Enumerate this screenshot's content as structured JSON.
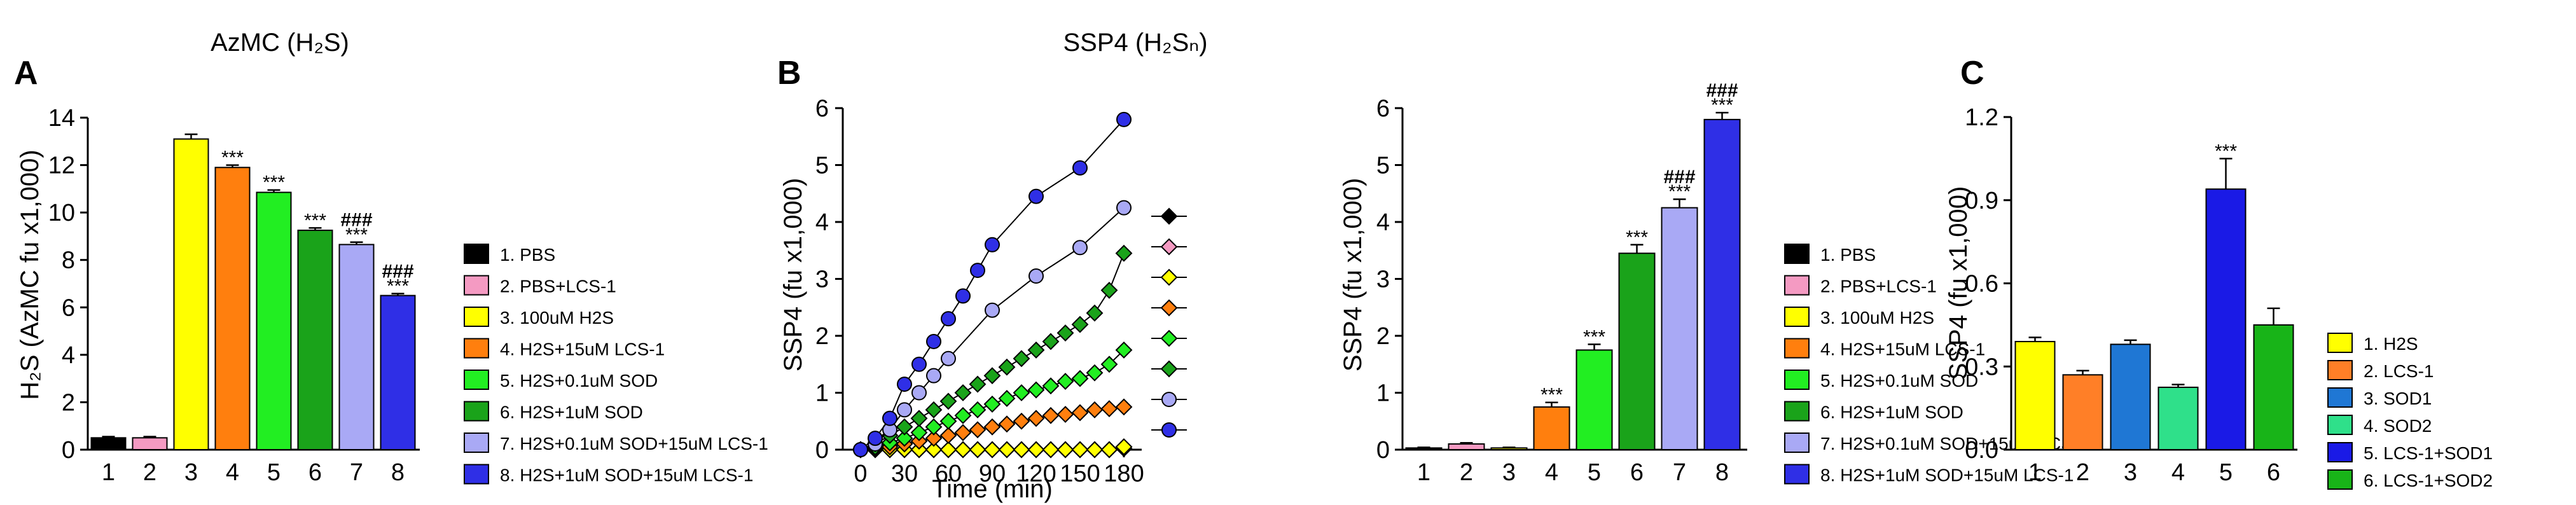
{
  "panel_labels": {
    "a": "A",
    "b": "B",
    "c": "C"
  },
  "markers": {
    "sig": "***",
    "sig2": "###"
  },
  "colors": {
    "black": "#000000",
    "pink": "#f49ac2",
    "yellow": "#ffff00",
    "orange": "#ff7f0e",
    "light_green": "#22ee22",
    "green": "#1aa31a",
    "lavender": "#a9a9f5",
    "blue": "#2f2fe6",
    "c_yellow": "#ffff00",
    "c_orange": "#ff7f27",
    "c_blue": "#1f77d4",
    "c_mint": "#2fe08a",
    "c_blue2": "#1a1ae6",
    "c_green": "#18b418"
  },
  "chart_data": [
    {
      "id": "A",
      "type": "bar",
      "title": "AzMC (H₂S)",
      "xlabel": "",
      "ylabel": "H₂S (AzMC fu x1,000)",
      "ylim": [
        0,
        14
      ],
      "yticks": [
        0,
        2,
        4,
        6,
        8,
        10,
        12,
        14
      ],
      "categories": [
        "1",
        "2",
        "3",
        "4",
        "5",
        "6",
        "7",
        "8"
      ],
      "values": [
        0.5,
        0.5,
        13.1,
        11.9,
        10.85,
        9.25,
        8.65,
        6.5
      ],
      "errors": [
        0.05,
        0.05,
        0.2,
        0.1,
        0.1,
        0.1,
        0.1,
        0.08
      ],
      "annotations": [
        {
          "index": 3,
          "lines": [
            "***"
          ]
        },
        {
          "index": 4,
          "lines": [
            "***"
          ]
        },
        {
          "index": 5,
          "lines": [
            "***"
          ]
        },
        {
          "index": 6,
          "lines": [
            "###",
            "***"
          ]
        },
        {
          "index": 7,
          "lines": [
            "###",
            "***"
          ]
        }
      ],
      "legend": [
        "1. PBS",
        "2. PBS+LCS-1",
        "3. 100uM  H2S",
        "4. H2S+15uM  LCS-1",
        "5. H2S+0.1uM  SOD",
        "6. H2S+1uM  SOD",
        "7. H2S+0.1uM  SOD+15uM  LCS-1",
        "8. H2S+1uM  SOD+15uM  LCS-1"
      ]
    },
    {
      "id": "B-line",
      "type": "line",
      "title": "SSP4 (H₂Sₙ)",
      "xlabel": "Time (min)",
      "ylabel": "SSP4 (fu x1,000)",
      "xlim": [
        0,
        180
      ],
      "ylim": [
        0,
        6
      ],
      "xticks": [
        0,
        30,
        60,
        90,
        120,
        150,
        180
      ],
      "yticks": [
        0,
        1,
        2,
        3,
        4,
        5,
        6
      ],
      "series": [
        {
          "name": "1. PBS",
          "marker": "diamond",
          "x": [
            0,
            10,
            20,
            30,
            40,
            50,
            60,
            70,
            80,
            90,
            100,
            110,
            120,
            130,
            140,
            150,
            160,
            170,
            180
          ],
          "y": [
            0,
            0,
            0,
            0,
            0,
            0,
            0,
            0,
            0,
            0,
            0,
            0,
            0,
            0,
            0,
            0,
            0,
            0,
            0.02
          ]
        },
        {
          "name": "2. PBS+LCS-1",
          "marker": "diamond",
          "x": [
            0,
            10,
            20,
            30,
            40,
            50,
            60,
            70,
            80,
            90,
            100,
            110,
            120,
            130,
            140,
            150,
            160,
            170,
            180
          ],
          "y": [
            0,
            0,
            0,
            0,
            0,
            0,
            0,
            0,
            0,
            0,
            0,
            0,
            0,
            0,
            0,
            0,
            0,
            0,
            0.05
          ]
        },
        {
          "name": "3. 100uM  H2S",
          "marker": "diamond",
          "x": [
            0,
            10,
            20,
            30,
            40,
            50,
            60,
            70,
            80,
            90,
            100,
            110,
            120,
            130,
            140,
            150,
            160,
            170,
            180
          ],
          "y": [
            0,
            0,
            0,
            0,
            0,
            0,
            0,
            0,
            0,
            0,
            0,
            0,
            0,
            0,
            0,
            0,
            0,
            0,
            0.05
          ]
        },
        {
          "name": "4. H2S+15uM  LCS-1",
          "marker": "diamond",
          "x": [
            0,
            10,
            20,
            30,
            40,
            50,
            60,
            70,
            80,
            90,
            100,
            110,
            120,
            130,
            140,
            150,
            160,
            170,
            180
          ],
          "y": [
            0,
            0.02,
            0.05,
            0.1,
            0.15,
            0.2,
            0.25,
            0.3,
            0.35,
            0.4,
            0.45,
            0.5,
            0.55,
            0.6,
            0.62,
            0.65,
            0.7,
            0.72,
            0.75
          ]
        },
        {
          "name": "5. H2S+0.1uM  SOD",
          "marker": "diamond",
          "x": [
            0,
            10,
            20,
            30,
            40,
            50,
            60,
            70,
            80,
            90,
            100,
            110,
            120,
            130,
            140,
            150,
            160,
            170,
            180
          ],
          "y": [
            0,
            0.05,
            0.12,
            0.2,
            0.3,
            0.4,
            0.5,
            0.6,
            0.7,
            0.8,
            0.9,
            1.0,
            1.05,
            1.12,
            1.2,
            1.25,
            1.35,
            1.5,
            1.75
          ]
        },
        {
          "name": "6. H2S+1uM  SOD",
          "marker": "diamond",
          "x": [
            0,
            10,
            20,
            30,
            40,
            50,
            60,
            70,
            80,
            90,
            100,
            110,
            120,
            130,
            140,
            150,
            160,
            170,
            180
          ],
          "y": [
            0,
            0.1,
            0.25,
            0.4,
            0.55,
            0.7,
            0.85,
            1.0,
            1.15,
            1.3,
            1.45,
            1.6,
            1.75,
            1.9,
            2.05,
            2.2,
            2.4,
            2.8,
            3.45
          ]
        },
        {
          "name": "7. H2S+0.1uM  SOD+15uM  LCS-1",
          "marker": "circle",
          "x": [
            0,
            10,
            20,
            30,
            40,
            50,
            60,
            90,
            120,
            150,
            180
          ],
          "y": [
            0,
            0.1,
            0.35,
            0.7,
            1.0,
            1.3,
            1.6,
            2.45,
            3.05,
            3.55,
            4.25
          ]
        },
        {
          "name": "8. H2S+1uM  SOD+15uM  LCS-1",
          "marker": "circle",
          "x": [
            0,
            10,
            20,
            30,
            40,
            50,
            60,
            70,
            80,
            90,
            120,
            150,
            180
          ],
          "y": [
            0,
            0.2,
            0.55,
            1.15,
            1.5,
            1.9,
            2.3,
            2.7,
            3.15,
            3.6,
            4.45,
            4.95,
            5.8
          ]
        }
      ]
    },
    {
      "id": "B-bar",
      "type": "bar",
      "title": "",
      "xlabel": "",
      "ylabel": "SSP4 (fu x1,000)",
      "ylim": [
        0,
        6
      ],
      "yticks": [
        0,
        1,
        2,
        3,
        4,
        5,
        6
      ],
      "categories": [
        "1",
        "2",
        "3",
        "4",
        "5",
        "6",
        "7",
        "8"
      ],
      "values": [
        0.03,
        0.1,
        0.03,
        0.75,
        1.75,
        3.45,
        4.25,
        5.8
      ],
      "errors": [
        0.01,
        0.02,
        0.01,
        0.08,
        0.1,
        0.15,
        0.15,
        0.12
      ],
      "annotations": [
        {
          "index": 3,
          "lines": [
            "***"
          ]
        },
        {
          "index": 4,
          "lines": [
            "***"
          ]
        },
        {
          "index": 5,
          "lines": [
            "***"
          ]
        },
        {
          "index": 6,
          "lines": [
            "###",
            "***"
          ]
        },
        {
          "index": 7,
          "lines": [
            "###",
            "***"
          ]
        }
      ],
      "legend": [
        "1. PBS",
        "2. PBS+LCS-1",
        "3. 100uM  H2S",
        "4. H2S+15uM  LCS-1",
        "5. H2S+0.1uM  SOD",
        "6. H2S+1uM  SOD",
        "7. H2S+0.1uM  SOD+15uM  LCS-1",
        "8. H2S+1uM  SOD+15uM  LCS-1"
      ]
    },
    {
      "id": "C",
      "type": "bar",
      "title": "",
      "xlabel": "",
      "ylabel": "SSP4 (fu x1,000)",
      "ylim": [
        0,
        1.2
      ],
      "yticks": [
        "0.0",
        "0.3",
        "0.6",
        "0.9",
        "1.2"
      ],
      "categories": [
        "1",
        "2",
        "3",
        "4",
        "5",
        "6"
      ],
      "values": [
        0.39,
        0.27,
        0.38,
        0.225,
        0.94,
        0.45
      ],
      "errors": [
        0.015,
        0.015,
        0.015,
        0.01,
        0.11,
        0.06
      ],
      "annotations": [
        {
          "index": 4,
          "lines": [
            "***"
          ]
        }
      ],
      "legend": [
        "1. H2S",
        "2. LCS-1",
        "3. SOD1",
        "4. SOD2",
        "5. LCS-1+SOD1",
        "6. LCS-1+SOD2"
      ]
    }
  ]
}
